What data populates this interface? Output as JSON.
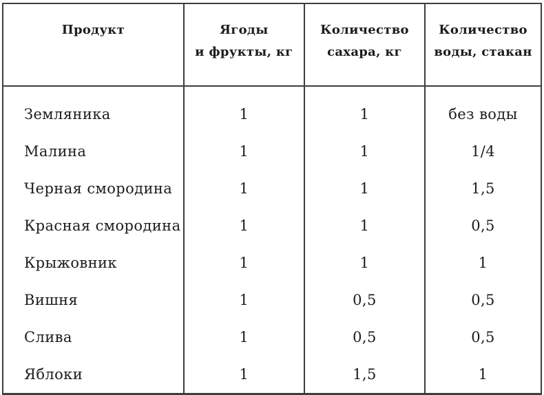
{
  "table": {
    "headers": [
      "Продукт",
      "Ягоды\nи фрукты, кг",
      "Количество\nсахара, кг",
      "Количество\nводы, стакан"
    ],
    "rows": [
      {
        "product": "Земляника",
        "fruit_kg": "1",
        "sugar_kg": "1",
        "water_glasses": "без воды"
      },
      {
        "product": "Малина",
        "fruit_kg": "1",
        "sugar_kg": "1",
        "water_glasses": "1/4"
      },
      {
        "product": "Черная смородина",
        "fruit_kg": "1",
        "sugar_kg": "1",
        "water_glasses": "1,5"
      },
      {
        "product": "Красная смородина",
        "fruit_kg": "1",
        "sugar_kg": "1",
        "water_glasses": "0,5"
      },
      {
        "product": "Крыжовник",
        "fruit_kg": "1",
        "sugar_kg": "1",
        "water_glasses": "1"
      },
      {
        "product": "Вишня",
        "fruit_kg": "1",
        "sugar_kg": "0,5",
        "water_glasses": "0,5"
      },
      {
        "product": "Слива",
        "fruit_kg": "1",
        "sugar_kg": "0,5",
        "water_glasses": "0,5"
      },
      {
        "product": "Яблоки",
        "fruit_kg": "1",
        "sugar_kg": "1,5",
        "water_glasses": "1"
      }
    ]
  },
  "colors": {
    "border": "#3d3d3d",
    "text": "#1c1c1c",
    "background": "#ffffff"
  }
}
